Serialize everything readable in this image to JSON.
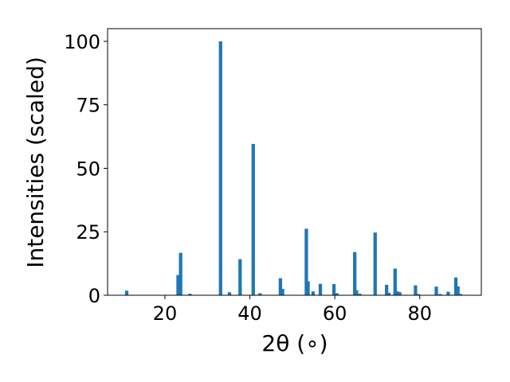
{
  "chart_data": {
    "type": "bar",
    "title": "",
    "xlabel": "2θ (∘)",
    "ylabel": "Intensities (scaled)",
    "xlim": [
      6.5,
      94.5
    ],
    "ylim": [
      0,
      105
    ],
    "xticks": [
      20,
      40,
      60,
      80
    ],
    "yticks": [
      0,
      25,
      50,
      75,
      100
    ],
    "grid": false,
    "bar_width": 0.8,
    "color": "#1f77b4",
    "x": [
      11.0,
      23.1,
      23.7,
      25.9,
      33.1,
      35.2,
      37.7,
      40.8,
      42.4,
      47.2,
      47.7,
      53.3,
      53.7,
      54.9,
      56.6,
      59.8,
      60.5,
      64.7,
      65.1,
      65.9,
      69.5,
      72.2,
      72.7,
      74.2,
      74.8,
      75.3,
      79.0,
      79.6,
      83.9,
      84.8,
      86.7,
      88.5,
      89.0,
      89.6
    ],
    "values": [
      1.8,
      8.0,
      16.7,
      0.6,
      100.0,
      1.2,
      14.2,
      59.6,
      0.8,
      6.7,
      2.5,
      26.2,
      5.5,
      1.5,
      4.5,
      4.4,
      0.8,
      17.0,
      2.0,
      0.6,
      24.7,
      4.1,
      1.0,
      10.5,
      1.5,
      1.2,
      3.9,
      0.5,
      3.4,
      0.5,
      1.4,
      7.0,
      3.5,
      0.5
    ]
  }
}
